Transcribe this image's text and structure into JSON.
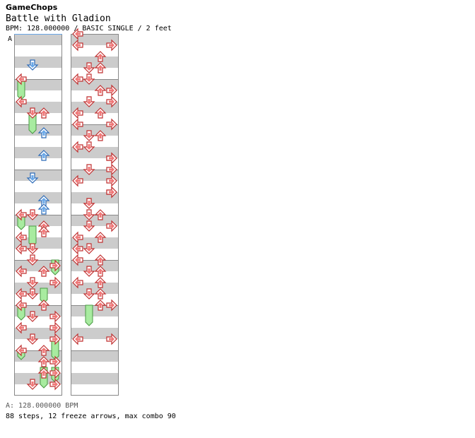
{
  "header": {
    "artist": "GameChops",
    "title": "Battle with Gladion",
    "meta": "BPM: 128.000000 / BASIC SINGLE / 2 feet"
  },
  "footer": {
    "bpm_line": "A: 128.000000 BPM",
    "stats_line": "88 steps, 12 freeze arrows, max combo 90"
  },
  "bpm_marker": "A",
  "colors": {
    "quarter": "#f07878",
    "eighth": "#6aa8e8",
    "freeze": "#a8eba0",
    "stripe": "#cccccc",
    "measure_line": "#888888"
  },
  "chart_data": {
    "type": "table",
    "measures_per_column": 8,
    "divisions_per_measure": 4,
    "note_key": "[measure, beat_offset, lane(0=left,1=down,2=up,3=right), kind]",
    "freeze_key": "[measure, start_beat, end_beat, lane]",
    "notes": [
      [
        0,
        2.75,
        1,
        "e"
      ],
      [
        1,
        0.0,
        0,
        "q"
      ],
      [
        1,
        2.0,
        0,
        "q"
      ],
      [
        1,
        3.0,
        1,
        "q"
      ],
      [
        1,
        3.0,
        2,
        "q"
      ],
      [
        2,
        0.75,
        2,
        "e"
      ],
      [
        2,
        2.75,
        2,
        "e"
      ],
      [
        3,
        0.75,
        1,
        "e"
      ],
      [
        3,
        2.75,
        2,
        "e"
      ],
      [
        3,
        3.5,
        2,
        "e"
      ],
      [
        4,
        0.0,
        1,
        "q"
      ],
      [
        4,
        0.0,
        0,
        "q"
      ],
      [
        4,
        1.0,
        2,
        "q"
      ],
      [
        4,
        1.5,
        2,
        "q"
      ],
      [
        4,
        2.0,
        0,
        "q"
      ],
      [
        4,
        3.0,
        1,
        "q"
      ],
      [
        4,
        3.0,
        0,
        "q"
      ],
      [
        5,
        0.0,
        1,
        "q"
      ],
      [
        5,
        0.5,
        3,
        "q"
      ],
      [
        5,
        1.0,
        0,
        "q"
      ],
      [
        5,
        1.0,
        2,
        "q"
      ],
      [
        5,
        2.0,
        1,
        "q"
      ],
      [
        5,
        2.0,
        3,
        "q"
      ],
      [
        5,
        3.0,
        0,
        "q"
      ],
      [
        5,
        3.0,
        1,
        "q"
      ],
      [
        6,
        0.0,
        2,
        "q"
      ],
      [
        6,
        0.0,
        0,
        "q"
      ],
      [
        6,
        1.0,
        1,
        "q"
      ],
      [
        6,
        1.0,
        3,
        "q"
      ],
      [
        6,
        2.0,
        3,
        "q"
      ],
      [
        6,
        2.0,
        0,
        "q"
      ],
      [
        6,
        3.0,
        1,
        "q"
      ],
      [
        6,
        3.0,
        3,
        "q"
      ],
      [
        7,
        0.0,
        2,
        "q"
      ],
      [
        7,
        0.0,
        0,
        "q"
      ],
      [
        7,
        1.0,
        2,
        "q"
      ],
      [
        7,
        1.0,
        3,
        "q"
      ],
      [
        7,
        2.0,
        3,
        "q"
      ],
      [
        7,
        2.0,
        2,
        "q"
      ],
      [
        7,
        3.0,
        3,
        "q"
      ],
      [
        7,
        3.0,
        1,
        "q"
      ],
      [
        8,
        0.0,
        0,
        "q"
      ],
      [
        8,
        1.0,
        3,
        "q"
      ],
      [
        8,
        1.0,
        0,
        "q"
      ],
      [
        8,
        2.0,
        2,
        "q"
      ],
      [
        8,
        3.0,
        1,
        "q"
      ],
      [
        8,
        3.0,
        2,
        "q"
      ],
      [
        9,
        0.0,
        0,
        "q"
      ],
      [
        9,
        0.0,
        1,
        "q"
      ],
      [
        9,
        1.0,
        2,
        "q"
      ],
      [
        9,
        1.0,
        3,
        "q"
      ],
      [
        9,
        2.0,
        1,
        "q"
      ],
      [
        9,
        2.0,
        3,
        "q"
      ],
      [
        9,
        3.0,
        0,
        "q"
      ],
      [
        9,
        3.0,
        2,
        "q"
      ],
      [
        10,
        0.0,
        0,
        "q"
      ],
      [
        10,
        0.0,
        3,
        "q"
      ],
      [
        10,
        1.0,
        1,
        "q"
      ],
      [
        10,
        1.0,
        2,
        "q"
      ],
      [
        10,
        2.0,
        1,
        "q"
      ],
      [
        10,
        2.0,
        0,
        "q"
      ],
      [
        10,
        3.0,
        3,
        "q"
      ],
      [
        10,
        3.0,
        3,
        "q"
      ],
      [
        11,
        0.0,
        3,
        "q"
      ],
      [
        11,
        0.0,
        1,
        "q"
      ],
      [
        11,
        1.0,
        3,
        "q"
      ],
      [
        11,
        1.0,
        0,
        "q"
      ],
      [
        11,
        2.0,
        3,
        "q"
      ],
      [
        11,
        2.0,
        3,
        "q"
      ],
      [
        11,
        3.0,
        1,
        "q"
      ],
      [
        11,
        3.0,
        1,
        "q"
      ],
      [
        12,
        0.0,
        1,
        "q"
      ],
      [
        12,
        0.0,
        2,
        "q"
      ],
      [
        12,
        1.0,
        1,
        "q"
      ],
      [
        12,
        1.0,
        3,
        "q"
      ],
      [
        12,
        2.0,
        0,
        "q"
      ],
      [
        12,
        2.0,
        2,
        "q"
      ],
      [
        12,
        3.0,
        0,
        "q"
      ],
      [
        12,
        3.0,
        1,
        "q"
      ],
      [
        13,
        0.0,
        2,
        "q"
      ],
      [
        13,
        0.0,
        0,
        "q"
      ],
      [
        13,
        1.0,
        1,
        "q"
      ],
      [
        13,
        1.0,
        2,
        "q"
      ],
      [
        13,
        2.0,
        2,
        "q"
      ],
      [
        13,
        2.0,
        0,
        "q"
      ],
      [
        13,
        3.0,
        2,
        "q"
      ],
      [
        13,
        3.0,
        1,
        "q"
      ],
      [
        14,
        0.0,
        2,
        "q"
      ],
      [
        14,
        0.0,
        3,
        "q"
      ],
      [
        14,
        3.0,
        0,
        "q"
      ],
      [
        14,
        3.0,
        3,
        "q"
      ]
    ],
    "freezes": [
      [
        1,
        0.0,
        1.5,
        0
      ],
      [
        1,
        3.0,
        4.5,
        1
      ],
      [
        4,
        0.0,
        1.0,
        0
      ],
      [
        4,
        1.0,
        2.5,
        1
      ],
      [
        5,
        0.0,
        1.0,
        3
      ],
      [
        5,
        2.5,
        3.5,
        2
      ],
      [
        6,
        0.0,
        1.0,
        0
      ],
      [
        6,
        3.0,
        4.5,
        3
      ],
      [
        7,
        0.0,
        0.5,
        0
      ],
      [
        7,
        1.5,
        3.0,
        2
      ],
      [
        7,
        1.5,
        2.5,
        3
      ],
      [
        14,
        0.0,
        1.5,
        1
      ]
    ]
  }
}
